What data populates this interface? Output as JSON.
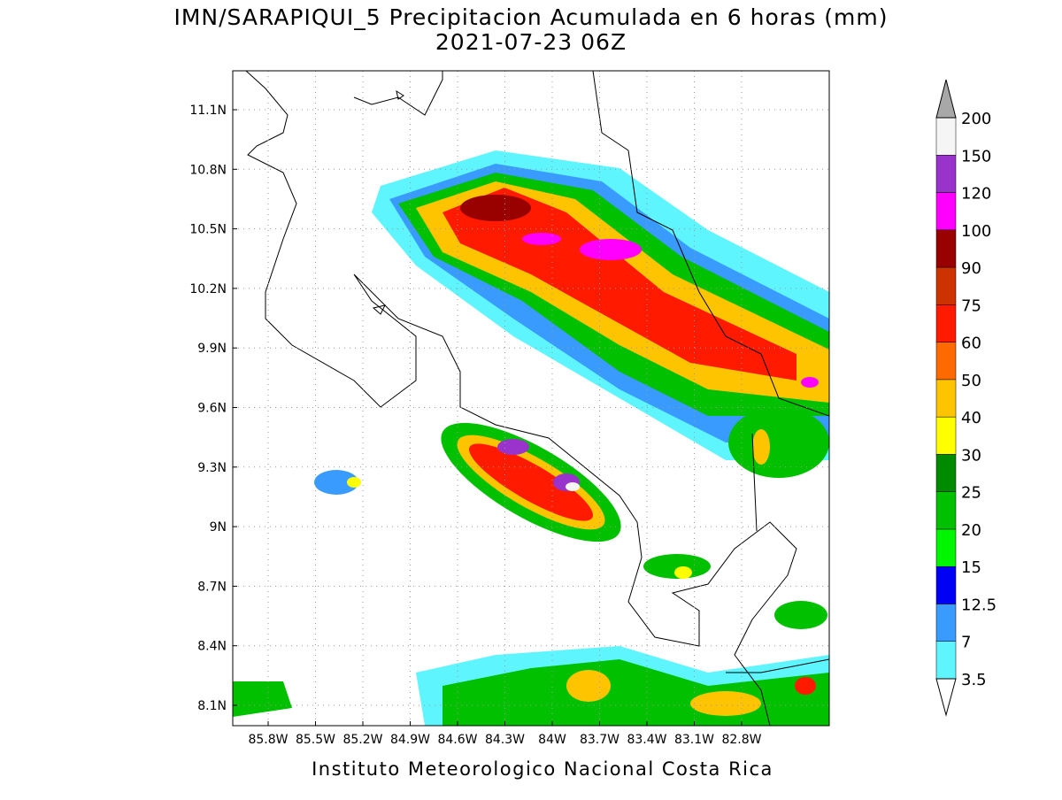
{
  "header": {
    "title": "IMN/SARAPIQUI_5 Precipitacion Acumulada en 6 horas (mm)",
    "subtitle": "2021-07-23 06Z"
  },
  "map": {
    "lat_labels": [
      "11.1N",
      "10.8N",
      "10.5N",
      "10.2N",
      "9.9N",
      "9.6N",
      "9.3N",
      "9N",
      "8.7N",
      "8.4N",
      "8.1N"
    ],
    "lon_labels": [
      "85.8W",
      "85.5W",
      "85.2W",
      "84.9W",
      "84.6W",
      "84.3W",
      "84W",
      "83.7W",
      "83.4W",
      "83.1W",
      "82.8W"
    ]
  },
  "colorbar": {
    "labels": [
      "3.5",
      "7",
      "12.5",
      "15",
      "20",
      "25",
      "30",
      "40",
      "50",
      "60",
      "75",
      "90",
      "100",
      "120",
      "150",
      "200"
    ],
    "colors": [
      "#5ff5ff",
      "#3a9bff",
      "#0000f5",
      "#00f500",
      "#00c000",
      "#008a00",
      "#ffff00",
      "#ffc400",
      "#ff6a00",
      "#ff1a00",
      "#cc3300",
      "#990000",
      "#ff00ff",
      "#9933cc",
      "#f5f5f5"
    ],
    "over_color": "#a8a8a8"
  },
  "footer": "Instituto Meteorologico Nacional Costa Rica"
}
